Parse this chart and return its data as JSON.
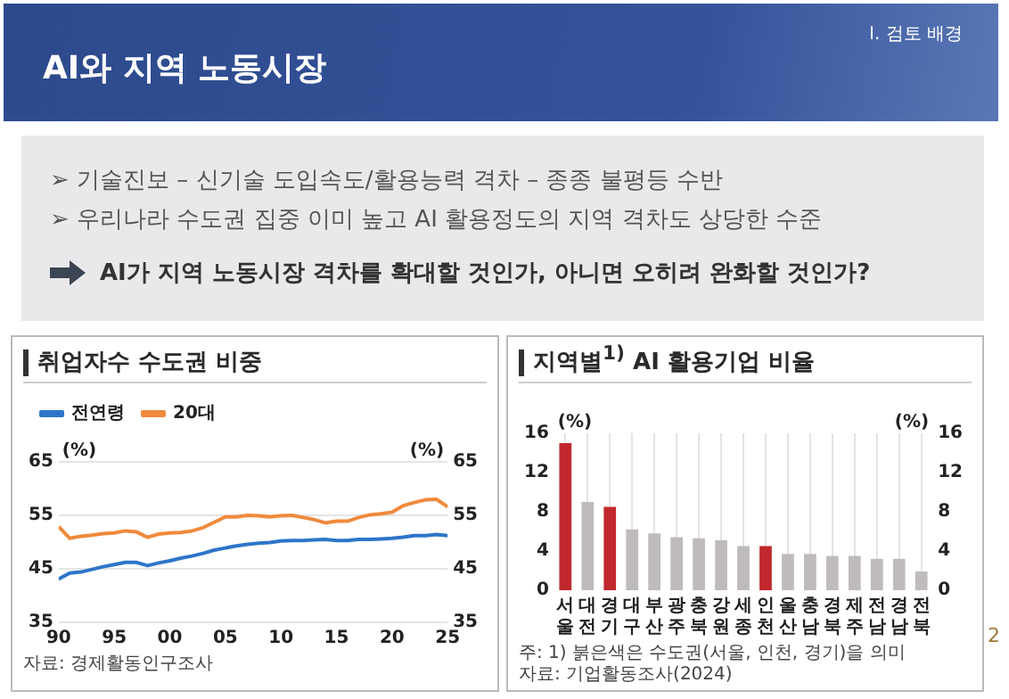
{
  "chart_data": [
    {
      "type": "other",
      "title": "AI와 지역 노동시장",
      "subtitle": "I. 검토 배경",
      "annotations": [
        "➢ 기술진보 – 신기술 도입속도/활용능력 격차 – 종종 불평등 수반",
        "➢ 우리나라 수도권 집중 이미 높고 AI 활용정도의 지역 격차도 상당한 수준",
        "AI가 지역 노동시장 격차를 확대할 것인가, 아니면 오히려 완화할 것인가?",
        "2"
      ]
    },
    {
      "type": "line",
      "title": "취업자수 수도권 비중",
      "ylabel": "(%)",
      "y2label": "(%)",
      "x": [
        1990,
        1991,
        1992,
        1993,
        1994,
        1995,
        1996,
        1997,
        1998,
        1999,
        2000,
        2001,
        2002,
        2003,
        2004,
        2005,
        2006,
        2007,
        2008,
        2009,
        2010,
        2011,
        2012,
        2013,
        2014,
        2015,
        2016,
        2017,
        2018,
        2019,
        2020,
        2021,
        2022,
        2023,
        2024,
        2025
      ],
      "series": [
        {
          "name": "전연령",
          "color": "#2e75c9",
          "values": [
            43.1,
            44.2,
            44.4,
            44.9,
            45.4,
            45.8,
            46.2,
            46.2,
            45.6,
            46.1,
            46.5,
            47.0,
            47.4,
            47.9,
            48.5,
            48.9,
            49.3,
            49.6,
            49.8,
            49.9,
            50.2,
            50.3,
            50.3,
            50.4,
            50.5,
            50.3,
            50.3,
            50.5,
            50.5,
            50.6,
            50.7,
            50.9,
            51.2,
            51.2,
            51.4,
            51.2
          ]
        },
        {
          "name": "20대",
          "color": "#f08a3c",
          "values": [
            52.9,
            50.7,
            51.1,
            51.3,
            51.6,
            51.7,
            52.1,
            51.9,
            50.9,
            51.5,
            51.7,
            51.8,
            52.1,
            52.7,
            53.7,
            54.7,
            54.7,
            55.0,
            54.9,
            54.7,
            54.9,
            55.0,
            54.6,
            54.2,
            53.6,
            53.9,
            53.9,
            54.6,
            55.1,
            55.3,
            55.6,
            56.8,
            57.4,
            57.9,
            58.0,
            56.6
          ]
        }
      ],
      "xlim": [
        1990,
        2025
      ],
      "xticks": [
        {
          "value": 1990,
          "label": "90"
        },
        {
          "value": 1995,
          "label": "95"
        },
        {
          "value": 2000,
          "label": "00"
        },
        {
          "value": 2005,
          "label": "05"
        },
        {
          "value": 2010,
          "label": "10"
        },
        {
          "value": 2015,
          "label": "15"
        },
        {
          "value": 2020,
          "label": "20"
        },
        {
          "value": 2025,
          "label": "25"
        }
      ],
      "ylim": [
        35,
        65
      ],
      "yticks": [
        35,
        45,
        55,
        65
      ],
      "y2lim": [
        35,
        65
      ],
      "y2ticks": [
        35,
        45,
        55,
        65
      ],
      "grid": "y",
      "legend": "top left",
      "annotations": [
        "자료: 경제활동인구조사"
      ]
    },
    {
      "type": "bar",
      "title": "지역별$^{1)}$ AI 활용기업 비율",
      "ylabel": "(%)",
      "y2label": "(%)",
      "categories": [
        "서울",
        "대전",
        "경기",
        "대구",
        "부산",
        "광주",
        "충북",
        "강원",
        "세종",
        "인천",
        "울산",
        "충남",
        "경북",
        "제주",
        "전남",
        "경남",
        "전북"
      ],
      "values": [
        15.0,
        9.0,
        8.5,
        6.2,
        5.8,
        5.4,
        5.3,
        5.1,
        4.5,
        4.5,
        3.7,
        3.7,
        3.5,
        3.5,
        3.2,
        3.2,
        1.9
      ],
      "colors": [
        "#c0282d",
        "#bfbbbb",
        "#c0282d",
        "#bfbbbb",
        "#bfbbbb",
        "#bfbbbb",
        "#bfbbbb",
        "#bfbbbb",
        "#bfbbbb",
        "#c0282d",
        "#bfbbbb",
        "#bfbbbb",
        "#bfbbbb",
        "#bfbbbb",
        "#bfbbbb",
        "#bfbbbb",
        "#bfbbbb"
      ],
      "ylim": [
        0,
        16
      ],
      "yticks": [
        0,
        4,
        8,
        12,
        16
      ],
      "y2lim": [
        0,
        16
      ],
      "y2ticks": [
        0,
        4,
        8,
        12,
        16
      ],
      "grid": "x",
      "annotations": [
        "주: 1) 붉은색은 수도권(서울, 인천, 경기)을 의미",
        "자료: 기업활동조사(2024)"
      ]
    }
  ]
}
